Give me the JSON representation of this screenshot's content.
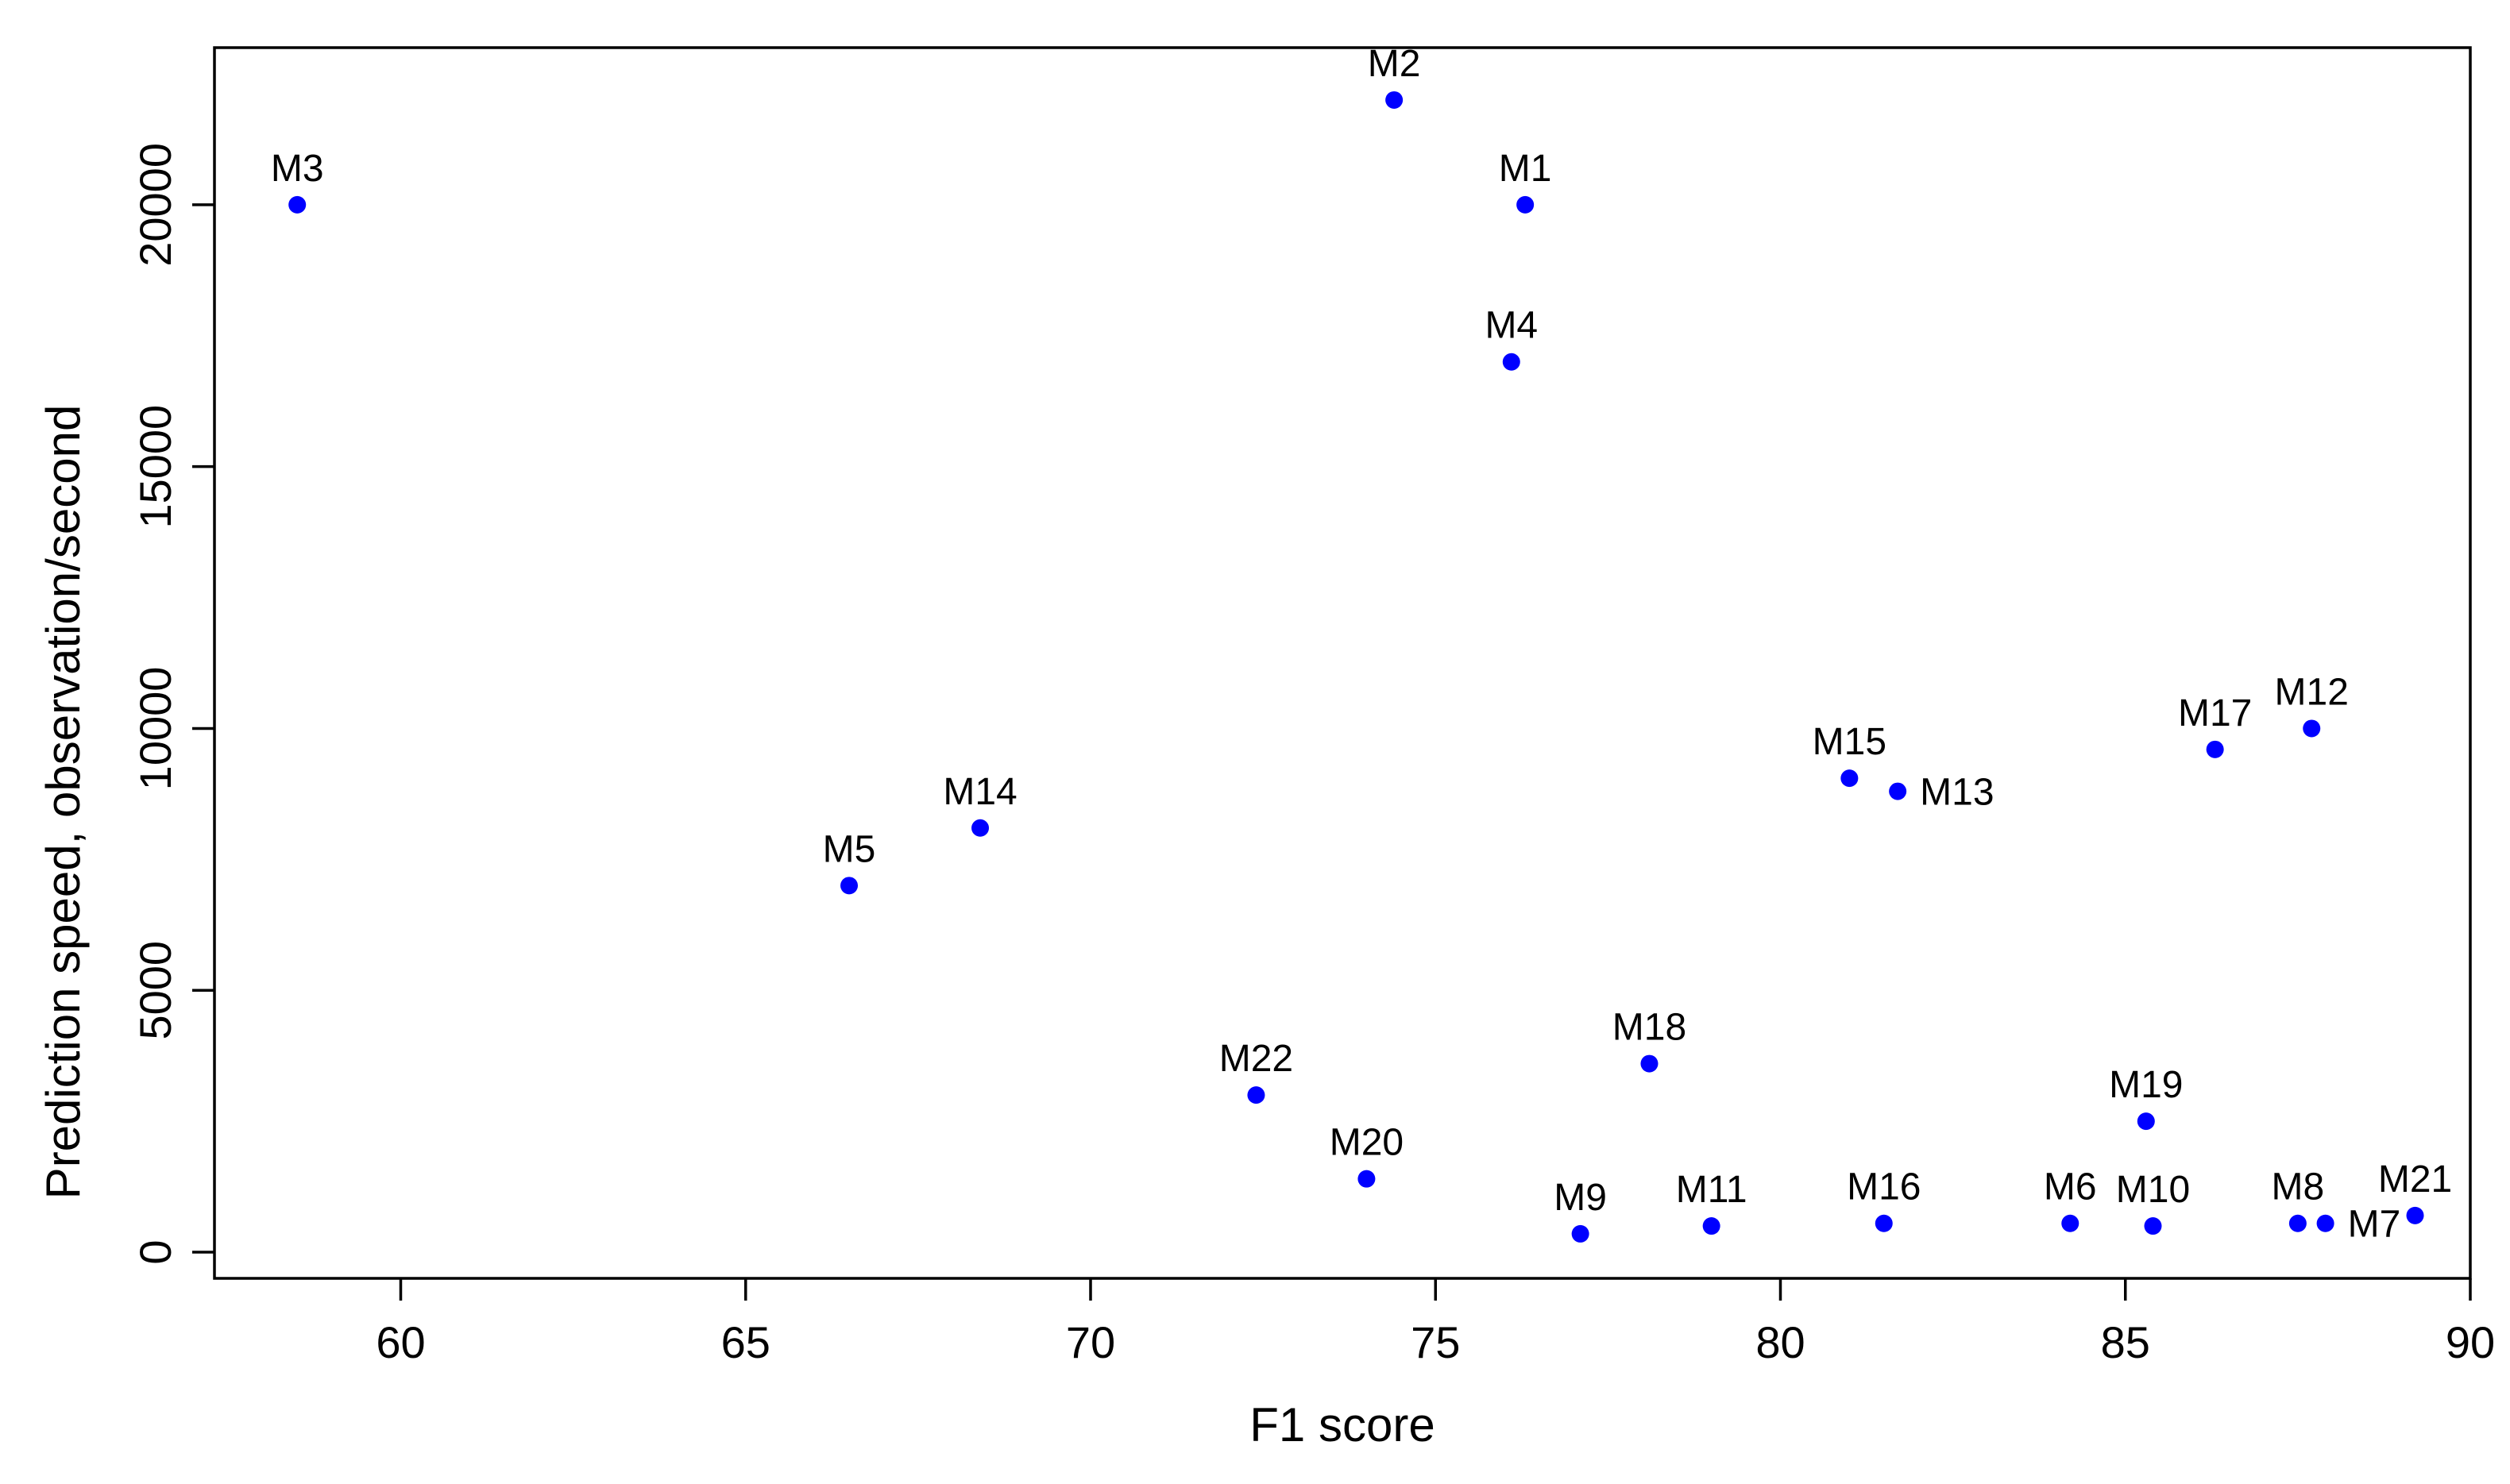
{
  "chart_data": {
    "type": "scatter",
    "xlabel": "F1 score",
    "ylabel": "Prediction speed, observation/second",
    "xlim": [
      57.3,
      90.0
    ],
    "ylim": [
      -500,
      23000
    ],
    "xticks": [
      60,
      65,
      70,
      75,
      80,
      85,
      90
    ],
    "yticks": [
      0,
      5000,
      10000,
      15000,
      20000
    ],
    "grid": false,
    "legend": "none",
    "point_color": "#0000ff",
    "points": [
      {
        "label": "M1",
        "x": 76.3,
        "y": 20000,
        "label_pos": "above"
      },
      {
        "label": "M2",
        "x": 74.4,
        "y": 22000,
        "label_pos": "above"
      },
      {
        "label": "M3",
        "x": 58.5,
        "y": 20000,
        "label_pos": "above"
      },
      {
        "label": "M4",
        "x": 76.1,
        "y": 17000,
        "label_pos": "above"
      },
      {
        "label": "M5",
        "x": 66.5,
        "y": 7000,
        "label_pos": "above"
      },
      {
        "label": "M6",
        "x": 84.2,
        "y": 550,
        "label_pos": "above"
      },
      {
        "label": "M7",
        "x": 87.9,
        "y": 550,
        "label_pos": "right"
      },
      {
        "label": "M8",
        "x": 87.5,
        "y": 550,
        "label_pos": "above"
      },
      {
        "label": "M9",
        "x": 77.1,
        "y": 350,
        "label_pos": "above"
      },
      {
        "label": "M10",
        "x": 85.4,
        "y": 500,
        "label_pos": "above"
      },
      {
        "label": "M11",
        "x": 79.0,
        "y": 500,
        "label_pos": "above"
      },
      {
        "label": "M12",
        "x": 87.7,
        "y": 10000,
        "label_pos": "above"
      },
      {
        "label": "M13",
        "x": 81.7,
        "y": 8800,
        "label_pos": "right"
      },
      {
        "label": "M14",
        "x": 68.4,
        "y": 8100,
        "label_pos": "above"
      },
      {
        "label": "M15",
        "x": 81.0,
        "y": 9050,
        "label_pos": "above"
      },
      {
        "label": "M16",
        "x": 81.5,
        "y": 550,
        "label_pos": "above"
      },
      {
        "label": "M17",
        "x": 86.3,
        "y": 9600,
        "label_pos": "above"
      },
      {
        "label": "M18",
        "x": 78.1,
        "y": 3600,
        "label_pos": "above"
      },
      {
        "label": "M19",
        "x": 85.3,
        "y": 2500,
        "label_pos": "above"
      },
      {
        "label": "M20",
        "x": 74.0,
        "y": 1400,
        "label_pos": "above"
      },
      {
        "label": "M21",
        "x": 89.2,
        "y": 700,
        "label_pos": "above"
      },
      {
        "label": "M22",
        "x": 72.4,
        "y": 3000,
        "label_pos": "above"
      }
    ]
  }
}
